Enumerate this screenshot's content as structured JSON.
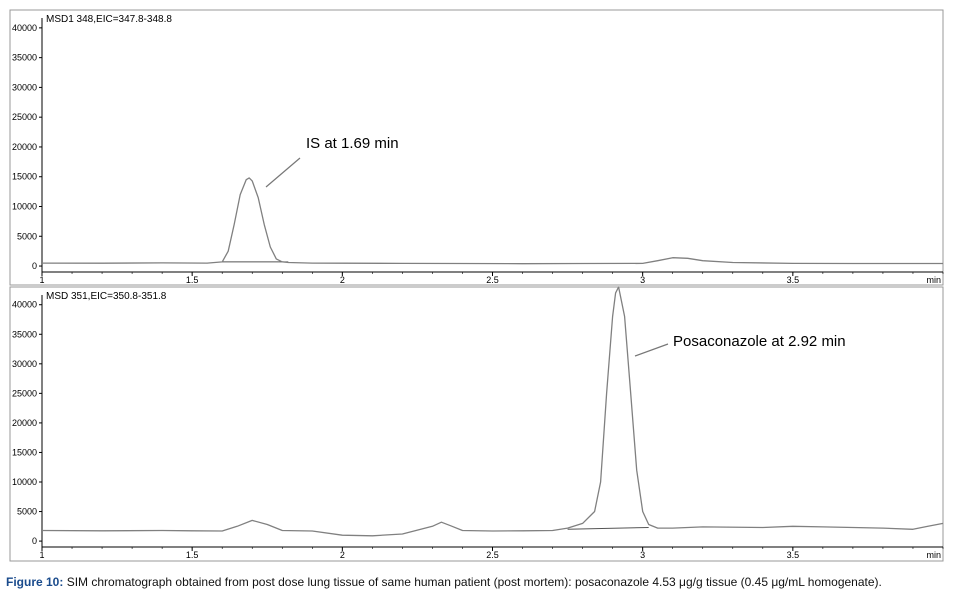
{
  "caption": {
    "label": "Figure 10:",
    "text": " SIM chromatograph obtained from post dose lung tissue of same human patient (post mortem): posaconazole 4.53 μg/g tissue (0.45 μg/mL homogenate)."
  },
  "chart_data": [
    {
      "type": "line",
      "title": "MSD1 348,EIC=347.8-348.8",
      "xlabel": "min",
      "xlim": [
        1,
        4
      ],
      "ylim": [
        -1000,
        43000
      ],
      "x_ticks": [
        1,
        1.5,
        2,
        2.5,
        3,
        3.5
      ],
      "x_tick_labels": [
        "1",
        "1.5",
        "2",
        "2.5",
        "3",
        "3.5"
      ],
      "y_ticks": [
        0,
        5000,
        10000,
        15000,
        20000,
        25000,
        30000,
        35000,
        40000
      ],
      "y_tick_labels": [
        "0",
        "5000",
        "10000",
        "15000",
        "20000",
        "25000",
        "30000",
        "35000",
        "40000"
      ],
      "line_color": "#808080",
      "series": [
        {
          "x": [
            1.0,
            1.2,
            1.4,
            1.55,
            1.6,
            1.62,
            1.64,
            1.66,
            1.68,
            1.69,
            1.7,
            1.72,
            1.74,
            1.76,
            1.78,
            1.8,
            1.82,
            1.9,
            2.0,
            2.2,
            2.4,
            2.6,
            2.8,
            3.0,
            3.05,
            3.1,
            3.15,
            3.2,
            3.3,
            3.5,
            3.7,
            3.9,
            4.0
          ],
          "y": [
            500,
            480,
            520,
            500,
            700,
            2500,
            7000,
            12000,
            14500,
            14800,
            14300,
            11500,
            7000,
            3200,
            1200,
            700,
            600,
            500,
            480,
            450,
            430,
            400,
            420,
            450,
            900,
            1400,
            1300,
            900,
            600,
            450,
            430,
            420,
            420
          ]
        }
      ],
      "baseline": {
        "x": [
          1.6,
          1.82
        ],
        "y": [
          700,
          700
        ]
      },
      "annotations": [
        {
          "text": "IS at 1.69 min",
          "x": 1.7,
          "y": 14500
        }
      ]
    },
    {
      "type": "line",
      "title": "MSD 351,EIC=350.8-351.8",
      "xlabel": "min",
      "xlim": [
        1,
        4
      ],
      "ylim": [
        -1000,
        43000
      ],
      "x_ticks": [
        1,
        1.5,
        2,
        2.5,
        3,
        3.5
      ],
      "x_tick_labels": [
        "1",
        "1.5",
        "2",
        "2.5",
        "3",
        "3.5"
      ],
      "y_ticks": [
        0,
        5000,
        10000,
        15000,
        20000,
        25000,
        30000,
        35000,
        40000
      ],
      "y_tick_labels": [
        "0",
        "5000",
        "10000",
        "15000",
        "20000",
        "25000",
        "30000",
        "35000",
        "40000"
      ],
      "line_color": "#808080",
      "series": [
        {
          "x": [
            1.0,
            1.2,
            1.4,
            1.5,
            1.6,
            1.65,
            1.7,
            1.75,
            1.8,
            1.9,
            2.0,
            2.1,
            2.2,
            2.3,
            2.33,
            2.36,
            2.4,
            2.5,
            2.6,
            2.7,
            2.75,
            2.8,
            2.84,
            2.86,
            2.88,
            2.9,
            2.91,
            2.92,
            2.94,
            2.96,
            2.98,
            3.0,
            3.02,
            3.05,
            3.1,
            3.2,
            3.4,
            3.5,
            3.6,
            3.7,
            3.8,
            3.9,
            3.95,
            4.0
          ],
          "y": [
            1800,
            1750,
            1800,
            1750,
            1700,
            2500,
            3500,
            2800,
            1800,
            1700,
            1000,
            900,
            1200,
            2500,
            3200,
            2600,
            1800,
            1700,
            1750,
            1800,
            2200,
            3000,
            5000,
            10000,
            25000,
            38000,
            42000,
            43000,
            38000,
            25000,
            12000,
            5000,
            2800,
            2200,
            2200,
            2400,
            2300,
            2500,
            2400,
            2300,
            2200,
            2000,
            2500,
            3000
          ]
        }
      ],
      "baseline": {
        "x": [
          2.75,
          3.02
        ],
        "y": [
          2000,
          2300
        ]
      },
      "annotations": [
        {
          "text": "Posaconazole at 2.92 min",
          "x": 2.92,
          "y": 43000
        }
      ]
    }
  ]
}
